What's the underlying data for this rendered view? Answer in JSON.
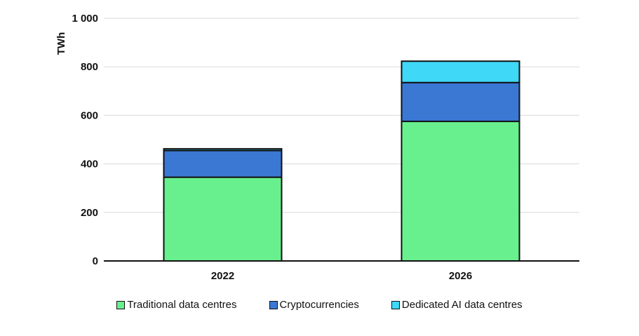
{
  "chart_data": {
    "type": "bar",
    "stacked": true,
    "categories": [
      "2022",
      "2026"
    ],
    "series": [
      {
        "name": "Traditional data centres",
        "values": [
          345,
          575
        ],
        "color": "#69F08E"
      },
      {
        "name": "Cryptocurrencies",
        "values": [
          110,
          160
        ],
        "color": "#3A78D4"
      },
      {
        "name": "Dedicated AI data centres",
        "values": [
          7,
          88
        ],
        "color": "#3FD8F7"
      }
    ],
    "ylabel": "TWh",
    "ylim": [
      0,
      1000
    ],
    "yticks": [
      0,
      200,
      400,
      600,
      800,
      1000
    ],
    "ytick_labels": [
      "0",
      "200",
      "400",
      "600",
      "800",
      "1 000"
    ],
    "grid": true,
    "legend_position": "bottom"
  }
}
